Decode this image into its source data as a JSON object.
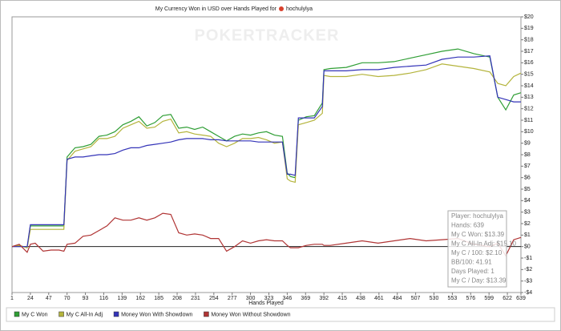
{
  "chart_data": {
    "type": "line",
    "title": "My Currency Won in USD over Hands Played for",
    "player_name": "hochulylya",
    "watermark": "POKERTRACKER",
    "x_label": "Hands Played",
    "xlim": [
      1,
      639
    ],
    "xticks": [
      1,
      24,
      47,
      70,
      93,
      116,
      139,
      162,
      185,
      208,
      231,
      254,
      277,
      300,
      323,
      346,
      369,
      392,
      415,
      438,
      461,
      484,
      507,
      530,
      553,
      576,
      599,
      622,
      639
    ],
    "ylim": [
      -4,
      20
    ],
    "yticks": [
      {
        "value": -4,
        "label": "-$4"
      },
      {
        "value": -3,
        "label": "-$3"
      },
      {
        "value": -2,
        "label": "-$2"
      },
      {
        "value": -1,
        "label": "-$1"
      },
      {
        "value": 0,
        "label": "$0"
      },
      {
        "value": 1,
        "label": "$1"
      },
      {
        "value": 2,
        "label": "$2"
      },
      {
        "value": 3,
        "label": "$3"
      },
      {
        "value": 4,
        "label": "$4"
      },
      {
        "value": 5,
        "label": "$5"
      },
      {
        "value": 6,
        "label": "$6"
      },
      {
        "value": 7,
        "label": "$7"
      },
      {
        "value": 8,
        "label": "$8"
      },
      {
        "value": 9,
        "label": "$9"
      },
      {
        "value": 10,
        "label": "$10"
      },
      {
        "value": 11,
        "label": "$11"
      },
      {
        "value": 12,
        "label": "$12"
      },
      {
        "value": 13,
        "label": "$13"
      },
      {
        "value": 14,
        "label": "$14"
      },
      {
        "value": 15,
        "label": "$15"
      },
      {
        "value": 16,
        "label": "$16"
      },
      {
        "value": 17,
        "label": "$17"
      },
      {
        "value": 18,
        "label": "$18"
      },
      {
        "value": 19,
        "label": "$19"
      },
      {
        "value": 20,
        "label": "$20"
      }
    ],
    "x": [
      1,
      10,
      20,
      24,
      30,
      40,
      50,
      60,
      66,
      70,
      80,
      90,
      100,
      110,
      120,
      130,
      140,
      150,
      160,
      170,
      180,
      190,
      200,
      210,
      220,
      230,
      240,
      250,
      260,
      270,
      280,
      290,
      300,
      310,
      320,
      330,
      340,
      346,
      350,
      356,
      360,
      370,
      380,
      390,
      392,
      400,
      420,
      440,
      460,
      480,
      500,
      520,
      540,
      560,
      580,
      600,
      610,
      620,
      630,
      639
    ],
    "series": [
      {
        "name": "My C Won",
        "color": "#2f9e35",
        "values": [
          0,
          0.1,
          -0.1,
          1.8,
          1.8,
          1.8,
          1.8,
          1.8,
          1.8,
          7.8,
          8.6,
          8.7,
          8.9,
          9.6,
          9.7,
          10.0,
          10.6,
          10.9,
          11.3,
          10.5,
          10.8,
          11.4,
          11.5,
          10.3,
          10.4,
          10.2,
          10.4,
          10.0,
          9.6,
          9.2,
          9.6,
          9.8,
          9.7,
          9.9,
          10.0,
          9.7,
          9.6,
          6.4,
          6.1,
          6.0,
          11.0,
          11.3,
          11.4,
          12.5,
          15.4,
          15.5,
          15.6,
          16.0,
          16.0,
          16.1,
          16.4,
          16.7,
          17.0,
          17.2,
          16.8,
          16.5,
          13.0,
          11.9,
          13.2,
          13.39
        ]
      },
      {
        "name": "My C All-In Adj",
        "color": "#b4b43c",
        "values": [
          0,
          0.1,
          -0.1,
          1.5,
          1.5,
          1.5,
          1.5,
          1.5,
          1.5,
          7.5,
          8.3,
          8.5,
          8.7,
          9.4,
          9.4,
          9.6,
          10.3,
          10.6,
          10.9,
          10.3,
          10.4,
          10.9,
          11.1,
          9.9,
          10.0,
          9.8,
          9.7,
          9.6,
          9.0,
          8.7,
          9.0,
          9.4,
          9.4,
          9.5,
          9.3,
          9.0,
          9.1,
          5.9,
          5.7,
          5.6,
          10.6,
          10.8,
          11.0,
          11.6,
          14.9,
          14.8,
          14.8,
          15.0,
          14.8,
          14.9,
          15.1,
          15.4,
          15.9,
          15.7,
          15.5,
          15.2,
          14.2,
          14.0,
          14.8,
          15.1
        ]
      },
      {
        "name": "Money Won With Showdown",
        "color": "#3434b8",
        "values": [
          0,
          0,
          0,
          1.9,
          1.9,
          1.9,
          1.9,
          1.9,
          1.9,
          7.6,
          7.8,
          7.8,
          7.9,
          8.0,
          8.0,
          8.1,
          8.4,
          8.6,
          8.6,
          8.8,
          8.9,
          9.0,
          9.1,
          9.3,
          9.4,
          9.4,
          9.4,
          9.3,
          9.3,
          9.2,
          9.2,
          9.2,
          9.2,
          9.1,
          9.1,
          9.1,
          9.1,
          6.3,
          6.3,
          6.2,
          11.2,
          11.2,
          11.2,
          12.2,
          15.3,
          15.3,
          15.3,
          15.4,
          15.4,
          15.6,
          15.7,
          15.8,
          16.3,
          16.5,
          16.5,
          16.6,
          13.0,
          12.8,
          12.6,
          12.6
        ]
      },
      {
        "name": "Money Won Without Showdown",
        "color": "#b03434",
        "values": [
          0,
          0.2,
          -0.5,
          0.2,
          0.3,
          -0.4,
          -0.3,
          -0.3,
          -0.4,
          0.2,
          0.3,
          0.9,
          1.0,
          1.4,
          1.8,
          2.5,
          2.3,
          2.3,
          2.5,
          2.3,
          2.5,
          2.9,
          2.8,
          1.2,
          1.0,
          1.1,
          1.0,
          0.7,
          0.7,
          -0.4,
          0.0,
          0.5,
          0.3,
          0.5,
          0.6,
          0.5,
          0.5,
          0.1,
          -0.1,
          -0.1,
          -0.1,
          0.1,
          0.2,
          0.2,
          0.1,
          0.1,
          0.3,
          0.5,
          0.3,
          0.5,
          0.7,
          0.5,
          0.6,
          0.7,
          0.2,
          0.0,
          0.3,
          -0.8,
          0.6,
          0.79
        ]
      }
    ],
    "tooltip": [
      "Player: hochulylya",
      "Hands: 639",
      "My C Won: $13.39",
      "My C All-In Adj: $15.10",
      "My C / 100: $2.10",
      "BB/100: 41.91",
      "Days Played: 1",
      "My C / Day: $13.39"
    ],
    "legend_position": "bottom"
  }
}
